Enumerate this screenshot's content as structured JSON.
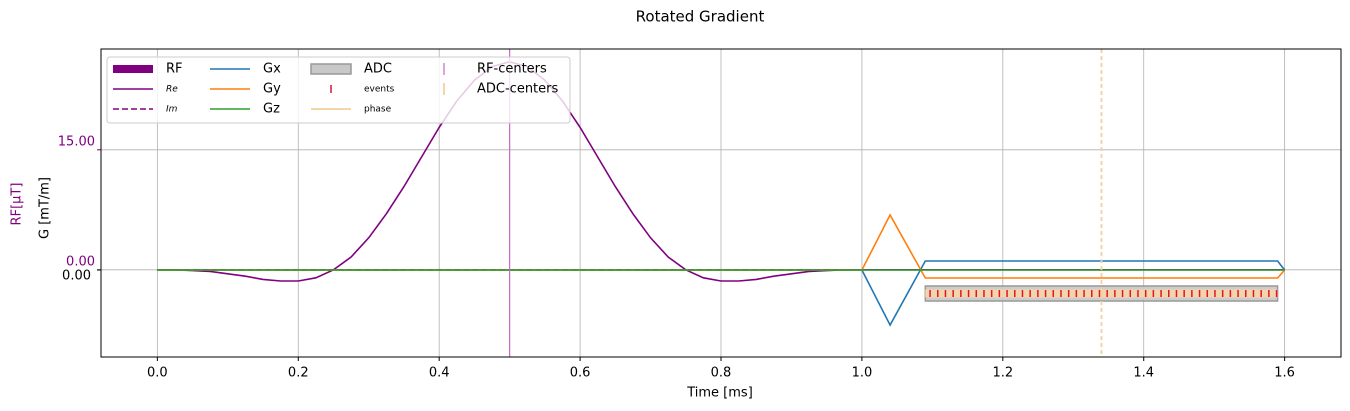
{
  "chart_data": {
    "type": "line",
    "title": "Rotated Gradient",
    "xlabel": "Time [ms]",
    "ylabel": "G [mT/m]",
    "y2label": "RF[μT]",
    "xlim": [
      -0.08,
      1.68
    ],
    "xticks": [
      {
        "value": 0,
        "label": "0.0"
      },
      {
        "value": 0.2,
        "label": "0.2"
      },
      {
        "value": 0.4,
        "label": "0.4"
      },
      {
        "value": 0.6,
        "label": "0.6"
      },
      {
        "value": 0.8,
        "label": "0.8"
      },
      {
        "value": 1.0,
        "label": "1.0"
      },
      {
        "value": 1.2,
        "label": "1.2"
      },
      {
        "value": 1.4,
        "label": "1.4"
      },
      {
        "value": 1.6,
        "label": "1.6"
      }
    ],
    "ylim": [
      -8.7,
      22.1
    ],
    "yticks": [
      {
        "value": 0,
        "label": "0.00"
      }
    ],
    "y2lim": [
      -10.9,
      27.6
    ],
    "y2ticks": [
      {
        "value": 0,
        "label": "0.00"
      },
      {
        "value": 15,
        "label": "15.00"
      }
    ],
    "y2color": "#800080",
    "grid": true,
    "rf_name": "RF",
    "series": [
      {
        "name": "Re",
        "color": "#800080",
        "axis": "y2",
        "dash": "solid",
        "x": [
          0,
          0.025,
          0.05,
          0.075,
          0.1,
          0.125,
          0.15,
          0.175,
          0.2,
          0.225,
          0.25,
          0.275,
          0.3,
          0.325,
          0.35,
          0.375,
          0.4,
          0.425,
          0.45,
          0.475,
          0.5,
          0.525,
          0.55,
          0.575,
          0.6,
          0.625,
          0.65,
          0.675,
          0.7,
          0.725,
          0.75,
          0.775,
          0.8,
          0.825,
          0.85,
          0.875,
          0.9,
          0.925,
          0.95,
          0.975,
          1.0,
          1.6
        ],
        "values": [
          0,
          0,
          -0.1,
          -0.2,
          -0.5,
          -0.8,
          -1.2,
          -1.4,
          -1.4,
          -1.0,
          0,
          1.6,
          4.0,
          7.0,
          10.4,
          14.1,
          17.8,
          21.1,
          23.7,
          25.4,
          26,
          25.4,
          23.7,
          21.1,
          17.8,
          14.1,
          10.4,
          7.0,
          4.0,
          1.6,
          0,
          -1.0,
          -1.4,
          -1.4,
          -1.2,
          -0.8,
          -0.5,
          -0.2,
          -0.1,
          0,
          0,
          0
        ]
      },
      {
        "name": "Im",
        "color": "#800080",
        "axis": "y2",
        "dash": "dashed",
        "x": [
          0,
          1.0
        ],
        "values": [
          0,
          0
        ]
      },
      {
        "name": "Gx",
        "color": "#1f77b4",
        "axis": "y",
        "dash": "solid",
        "x": [
          0,
          1.0,
          1.04,
          1.09,
          1.59,
          1.6
        ],
        "values": [
          0,
          0,
          -5.5,
          0.9,
          0.9,
          0
        ]
      },
      {
        "name": "Gy",
        "color": "#ff7f0e",
        "axis": "y",
        "dash": "solid",
        "x": [
          0,
          1.0,
          1.04,
          1.09,
          1.59,
          1.6
        ],
        "values": [
          0,
          0,
          5.5,
          -0.8,
          -0.8,
          0
        ]
      },
      {
        "name": "Gz",
        "color": "#2ca02c",
        "axis": "y",
        "dash": "solid",
        "x": [
          0,
          1.6
        ],
        "values": [
          0,
          0
        ]
      }
    ],
    "adc": {
      "name": "ADC",
      "color": "#c8c8c8",
      "x": [
        1.09,
        1.59
      ],
      "values": [
        -1.6,
        -3.1
      ],
      "events_name": "events",
      "events_color": "#dc143c",
      "phase_name": "phase",
      "phase_color": "#f5d5a8"
    },
    "rf_centers": {
      "name": "RF-centers",
      "color": "#cc66cc",
      "x": [
        0.5
      ]
    },
    "adc_centers": {
      "name": "ADC-centers",
      "color": "#f0d2a0",
      "x": [
        1.34
      ]
    }
  }
}
